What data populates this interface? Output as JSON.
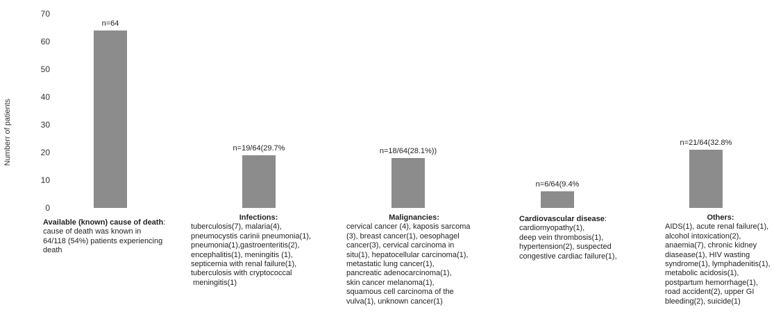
{
  "chart_data": {
    "type": "bar",
    "ylabel": "Numberr of patients",
    "ylim": [
      0,
      70
    ],
    "yticks": [
      0,
      10,
      20,
      30,
      40,
      50,
      60,
      70
    ],
    "grid": false,
    "bar_color": "#8c8c8c",
    "categories": [
      "Available (known) cause of death",
      "Infections",
      "Malignancies",
      "Cardiovascular disease",
      "Others"
    ],
    "values": [
      64,
      19,
      18,
      6,
      21
    ],
    "data_labels": [
      "n=64",
      "n=19/64(29.7%",
      "n=18/64(28.1%))",
      "n=6/64(9.4%",
      "n=21/64(32.8%"
    ]
  },
  "captions": [
    {
      "head": "Available (known) cause of death",
      "head_suffix": ":",
      "lines": [
        "cause of death was known in",
        "64/118 (54%) patients experiencing",
        "death"
      ]
    },
    {
      "head": "Infections:",
      "head_suffix": "",
      "lines": [
        "tuberculosis(7), malaria(4),",
        "pneumocystis carinii pneumonia(1),",
        "pneumonia(1),gastroenteritis(2),",
        "encephalitis(1), meningitis (1),",
        "septicemia with renal failure(1),",
        "tuberculosis with cryptococcal",
        " meningitis(1)"
      ]
    },
    {
      "head": "Malignancies:",
      "head_suffix": "",
      "lines": [
        "cervical cancer (4), kaposis sarcoma",
        "(3), breast cancer(1), oesophagel",
        "cancer(3), cervical carcinoma in",
        "situ(1), hepatocellular carcinoma(1),",
        "metastatic lung cancer(1),",
        "pancreatic adenocarcinoma(1),",
        "skin cancer melanoma(1),",
        "squamous cell carcinoma of the",
        "vulva(1), unknown cancer(1)"
      ]
    },
    {
      "head": "Cardiovascular disease",
      "head_suffix": ":",
      "lines": [
        "cardiomyopathy(1),",
        "deep vein thrombosis(1),",
        "hypertension(2), suspected",
        "congestive cardiac failure(1),"
      ]
    },
    {
      "head": "Others:",
      "head_suffix": "",
      "lines": [
        "AIDS(1), acute renal failure(1),",
        "alcohol intoxication(2),",
        "anaemia(7), chronic kidney",
        "diasease(1), HIV wasting",
        "syndrome(1), lymphadenitis(1),",
        "metabolic acidosis(1),",
        "postpartum hemorrhage(1),",
        "road accident(2), upper GI",
        "bleeding(2), suicide(1)"
      ]
    }
  ]
}
